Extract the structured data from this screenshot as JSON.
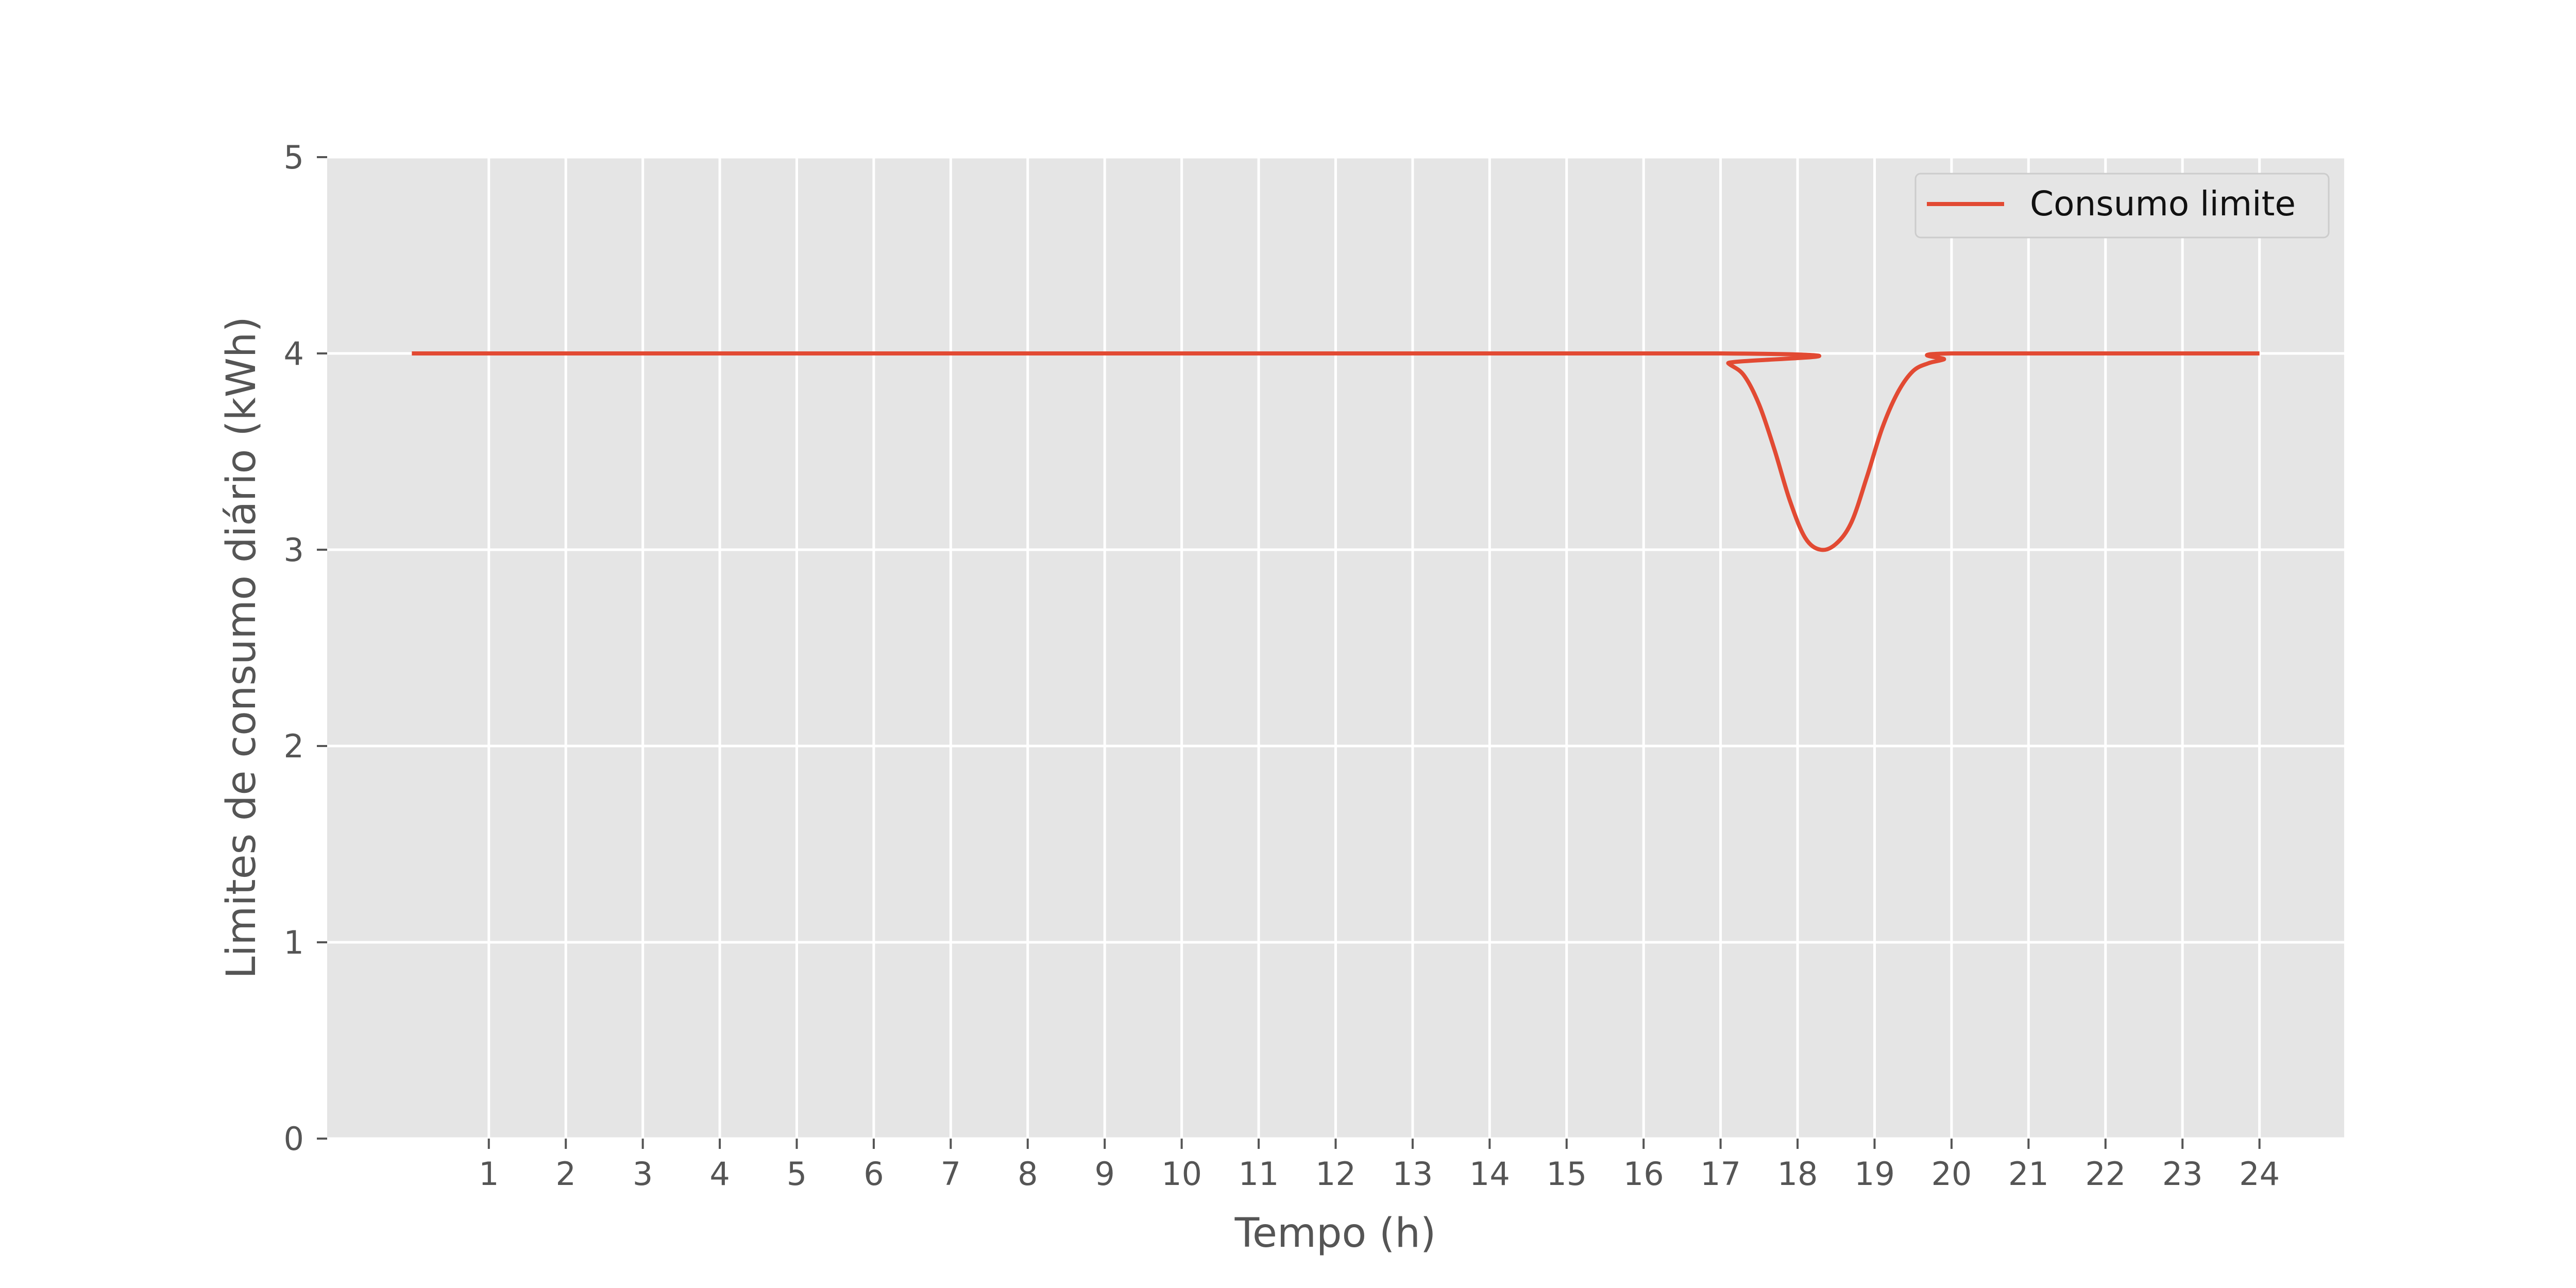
{
  "chart_data": {
    "type": "line",
    "title": "",
    "xlabel": "Tempo (h)",
    "ylabel": "Limites de consumo diário (kWh)",
    "xlim": [
      -1.1,
      25.1
    ],
    "ylim": [
      0,
      5
    ],
    "x_ticks": [
      1,
      2,
      3,
      4,
      5,
      6,
      7,
      8,
      9,
      10,
      11,
      12,
      13,
      14,
      15,
      16,
      17,
      18,
      19,
      20,
      21,
      22,
      23,
      24
    ],
    "x_tick_labels": [
      "1",
      "2",
      "3",
      "4",
      "5",
      "6",
      "7",
      "8",
      "9",
      "10",
      "11",
      "12",
      "13",
      "14",
      "15",
      "16",
      "17",
      "18",
      "19",
      "20",
      "21",
      "22",
      "23",
      "24"
    ],
    "y_ticks": [
      0,
      1,
      2,
      3,
      4,
      5
    ],
    "y_tick_labels": [
      "0",
      "1",
      "2",
      "3",
      "4",
      "5"
    ],
    "grid": true,
    "legend_position": "top-right",
    "series": [
      {
        "name": "Consumo limite",
        "color": "#E24A33",
        "x": [
          0.0,
          17.0,
          17.1,
          17.3,
          17.5,
          17.7,
          17.9,
          18.1,
          18.3,
          18.5,
          18.7,
          18.9,
          19.1,
          19.3,
          19.5,
          19.7,
          19.9,
          20.0,
          24.0
        ],
        "y": [
          4.0,
          4.0,
          3.95,
          3.89,
          3.74,
          3.51,
          3.25,
          3.06,
          3.0,
          3.03,
          3.14,
          3.37,
          3.62,
          3.8,
          3.91,
          3.95,
          3.97,
          4.0,
          4.0
        ]
      }
    ]
  },
  "colors": {
    "plot_background": "#E5E5E5",
    "grid": "#FFFFFF",
    "tick_text": "#555555",
    "legend_background": "#E5E5E5",
    "legend_border": "#CCCCCC"
  }
}
